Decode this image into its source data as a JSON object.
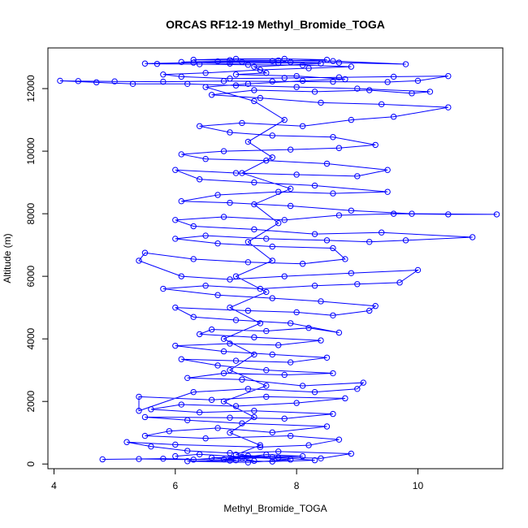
{
  "chart_data": {
    "type": "scatter",
    "title": "ORCAS RF12-19 Methyl_Bromide_TOGA",
    "xlabel": "Methyl_Bromide_TOGA",
    "ylabel": "Altitude (m)",
    "xlim": [
      3.9,
      11.4
    ],
    "ylim": [
      -150,
      13300
    ],
    "xticks": [
      4,
      6,
      8,
      10
    ],
    "yticks": [
      0,
      2000,
      4000,
      6000,
      8000,
      10000,
      12000
    ],
    "xtick_labels": [
      "4",
      "6",
      "8",
      "10"
    ],
    "ytick_labels": [
      "0",
      "2000",
      "4000",
      "6000",
      "8000",
      "10000",
      "12000"
    ],
    "grid": false,
    "legend": "none",
    "marker": "open-circle",
    "connected": true,
    "series": [
      {
        "color": "#0000ff",
        "points": [
          [
            7.3,
            100
          ],
          [
            7.1,
            180
          ],
          [
            7.6,
            220
          ],
          [
            6.8,
            150
          ],
          [
            7.5,
            300
          ],
          [
            8.1,
            250
          ],
          [
            6.6,
            200
          ],
          [
            7.0,
            120
          ],
          [
            5.8,
            170
          ],
          [
            4.8,
            150
          ],
          [
            5.4,
            160
          ],
          [
            6.3,
            140
          ],
          [
            7.2,
            260
          ],
          [
            8.4,
            180
          ],
          [
            8.9,
            330
          ],
          [
            7.7,
            400
          ],
          [
            6.9,
            350
          ],
          [
            6.2,
            420
          ],
          [
            5.6,
            560
          ],
          [
            5.2,
            700
          ],
          [
            6.0,
            620
          ],
          [
            7.4,
            540
          ],
          [
            8.2,
            600
          ],
          [
            8.7,
            780
          ],
          [
            7.9,
            900
          ],
          [
            6.5,
            820
          ],
          [
            5.5,
            900
          ],
          [
            5.9,
            1050
          ],
          [
            6.7,
            1150
          ],
          [
            7.6,
            1010
          ],
          [
            8.5,
            1200
          ],
          [
            7.1,
            1300
          ],
          [
            6.2,
            1400
          ],
          [
            5.5,
            1500
          ],
          [
            6.9,
            1480
          ],
          [
            7.8,
            1450
          ],
          [
            8.6,
            1600
          ],
          [
            7.3,
            1700
          ],
          [
            6.4,
            1650
          ],
          [
            5.6,
            1750
          ],
          [
            6.1,
            1900
          ],
          [
            7.0,
            1850
          ],
          [
            8.0,
            1950
          ],
          [
            8.8,
            2100
          ],
          [
            7.5,
            2150
          ],
          [
            6.6,
            2050
          ],
          [
            5.4,
            2150
          ],
          [
            5.4,
            1700
          ],
          [
            6.3,
            2300
          ],
          [
            7.2,
            2400
          ],
          [
            8.3,
            2300
          ],
          [
            9.0,
            2400
          ],
          [
            9.1,
            2600
          ],
          [
            8.1,
            2500
          ],
          [
            7.1,
            2700
          ],
          [
            6.2,
            2750
          ],
          [
            6.8,
            2900
          ],
          [
            7.8,
            2850
          ],
          [
            8.6,
            2900
          ],
          [
            7.5,
            3000
          ],
          [
            6.7,
            3150
          ],
          [
            6.1,
            3350
          ],
          [
            7.0,
            3300
          ],
          [
            7.9,
            3250
          ],
          [
            8.5,
            3400
          ],
          [
            7.6,
            3500
          ],
          [
            6.8,
            3600
          ],
          [
            6.0,
            3780
          ],
          [
            6.9,
            3850
          ],
          [
            7.7,
            3800
          ],
          [
            8.4,
            3950
          ],
          [
            7.3,
            4050
          ],
          [
            6.4,
            4150
          ],
          [
            6.6,
            4300
          ],
          [
            7.5,
            4250
          ],
          [
            8.2,
            4350
          ],
          [
            8.7,
            4200
          ],
          [
            7.9,
            4500
          ],
          [
            7.0,
            4600
          ],
          [
            6.3,
            4700
          ],
          [
            6.0,
            5000
          ],
          [
            7.2,
            4900
          ],
          [
            8.0,
            4850
          ],
          [
            8.6,
            4750
          ],
          [
            9.2,
            4900
          ],
          [
            9.3,
            5050
          ],
          [
            8.4,
            5200
          ],
          [
            7.6,
            5300
          ],
          [
            6.7,
            5400
          ],
          [
            5.8,
            5600
          ],
          [
            6.5,
            5700
          ],
          [
            7.4,
            5600
          ],
          [
            8.3,
            5700
          ],
          [
            9.0,
            5750
          ],
          [
            9.7,
            5800
          ],
          [
            10.0,
            6200
          ],
          [
            8.9,
            6100
          ],
          [
            7.8,
            6000
          ],
          [
            6.9,
            5900
          ],
          [
            6.1,
            6000
          ],
          [
            5.4,
            6500
          ],
          [
            5.5,
            6750
          ],
          [
            6.3,
            6550
          ],
          [
            7.2,
            6450
          ],
          [
            8.1,
            6400
          ],
          [
            8.8,
            6550
          ],
          [
            8.6,
            6900
          ],
          [
            7.6,
            6950
          ],
          [
            6.7,
            7050
          ],
          [
            6.0,
            7200
          ],
          [
            6.5,
            7300
          ],
          [
            7.5,
            7200
          ],
          [
            8.5,
            7150
          ],
          [
            9.2,
            7100
          ],
          [
            9.8,
            7150
          ],
          [
            10.9,
            7250
          ],
          [
            9.4,
            7400
          ],
          [
            8.3,
            7350
          ],
          [
            7.3,
            7500
          ],
          [
            6.3,
            7600
          ],
          [
            6.0,
            7800
          ],
          [
            6.8,
            7900
          ],
          [
            7.8,
            7800
          ],
          [
            8.7,
            7950
          ],
          [
            9.6,
            8000
          ],
          [
            10.5,
            7980
          ],
          [
            11.3,
            7980
          ],
          [
            9.9,
            8000
          ],
          [
            8.9,
            8100
          ],
          [
            7.9,
            8250
          ],
          [
            6.9,
            8350
          ],
          [
            6.1,
            8400
          ],
          [
            6.7,
            8600
          ],
          [
            7.7,
            8700
          ],
          [
            8.6,
            8650
          ],
          [
            9.5,
            8700
          ],
          [
            8.3,
            8900
          ],
          [
            7.3,
            9000
          ],
          [
            6.4,
            9100
          ],
          [
            6.0,
            9400
          ],
          [
            7.0,
            9300
          ],
          [
            8.0,
            9250
          ],
          [
            9.0,
            9200
          ],
          [
            9.5,
            9400
          ],
          [
            8.5,
            9600
          ],
          [
            7.5,
            9700
          ],
          [
            6.5,
            9750
          ],
          [
            6.1,
            9900
          ],
          [
            6.8,
            10000
          ],
          [
            7.9,
            10050
          ],
          [
            8.7,
            10100
          ],
          [
            9.3,
            10200
          ],
          [
            8.6,
            10450
          ],
          [
            7.6,
            10500
          ],
          [
            6.9,
            10600
          ],
          [
            6.4,
            10800
          ],
          [
            7.1,
            10900
          ],
          [
            8.1,
            10800
          ],
          [
            8.9,
            11000
          ],
          [
            9.6,
            11100
          ],
          [
            10.5,
            11400
          ],
          [
            9.4,
            11500
          ],
          [
            8.4,
            11550
          ],
          [
            7.4,
            11700
          ],
          [
            6.6,
            11800
          ],
          [
            7.3,
            11950
          ],
          [
            8.3,
            11900
          ],
          [
            9.2,
            11950
          ],
          [
            9.9,
            11850
          ],
          [
            10.2,
            11900
          ],
          [
            9.0,
            12000
          ],
          [
            8.0,
            12050
          ],
          [
            7.0,
            12100
          ],
          [
            6.2,
            12150
          ],
          [
            5.3,
            12150
          ],
          [
            4.7,
            12200
          ],
          [
            4.1,
            12250
          ],
          [
            4.4,
            12240
          ],
          [
            5.0,
            12230
          ],
          [
            5.8,
            12220
          ],
          [
            6.8,
            12240
          ],
          [
            7.6,
            12230
          ],
          [
            8.6,
            12220
          ],
          [
            9.5,
            12210
          ],
          [
            10.0,
            12250
          ],
          [
            10.5,
            12400
          ],
          [
            9.6,
            12380
          ],
          [
            8.7,
            12360
          ],
          [
            7.8,
            12340
          ],
          [
            6.9,
            12320
          ],
          [
            6.1,
            12380
          ],
          [
            5.8,
            12450
          ],
          [
            6.5,
            12500
          ],
          [
            7.4,
            12600
          ],
          [
            8.2,
            12650
          ],
          [
            8.9,
            12700
          ],
          [
            8.1,
            12750
          ],
          [
            7.2,
            12760
          ],
          [
            6.4,
            12780
          ],
          [
            5.7,
            12790
          ],
          [
            5.5,
            12800
          ],
          [
            6.3,
            12830
          ],
          [
            7.1,
            12850
          ],
          [
            7.9,
            12850
          ],
          [
            8.7,
            12830
          ],
          [
            9.8,
            12780
          ],
          [
            8.6,
            12880
          ],
          [
            7.7,
            12900
          ],
          [
            6.9,
            12910
          ],
          [
            6.3,
            12920
          ],
          [
            7.0,
            12950
          ],
          [
            7.8,
            12950
          ],
          [
            8.5,
            12920
          ],
          [
            7.6,
            12880
          ],
          [
            6.7,
            12870
          ],
          [
            6.1,
            12850
          ],
          [
            6.9,
            12800
          ],
          [
            7.7,
            12820
          ],
          [
            8.4,
            12800
          ],
          [
            7.3,
            12700
          ],
          [
            7.5,
            12500
          ],
          [
            7.0,
            12450
          ],
          [
            8.0,
            12400
          ],
          [
            8.8,
            12300
          ],
          [
            8.1,
            12250
          ],
          [
            7.2,
            12150
          ],
          [
            6.5,
            12050
          ],
          [
            7.3,
            11600
          ],
          [
            7.8,
            11000
          ],
          [
            7.2,
            10300
          ],
          [
            7.6,
            9800
          ],
          [
            7.1,
            9300
          ],
          [
            7.9,
            8800
          ],
          [
            7.3,
            8300
          ],
          [
            7.7,
            7700
          ],
          [
            7.2,
            7100
          ],
          [
            7.6,
            6500
          ],
          [
            7.0,
            6000
          ],
          [
            7.5,
            5500
          ],
          [
            6.9,
            5000
          ],
          [
            7.4,
            4500
          ],
          [
            6.8,
            4000
          ],
          [
            7.3,
            3500
          ],
          [
            6.9,
            3000
          ],
          [
            7.5,
            2500
          ],
          [
            6.8,
            2000
          ],
          [
            7.3,
            1500
          ],
          [
            6.9,
            1000
          ],
          [
            7.4,
            600
          ],
          [
            7.0,
            300
          ],
          [
            7.7,
            200
          ],
          [
            8.3,
            120
          ],
          [
            7.6,
            80
          ],
          [
            6.9,
            110
          ],
          [
            6.2,
            90
          ],
          [
            7.2,
            50
          ],
          [
            7.9,
            140
          ],
          [
            7.1,
            230
          ],
          [
            6.4,
            310
          ],
          [
            6.0,
            250
          ]
        ]
      }
    ]
  }
}
